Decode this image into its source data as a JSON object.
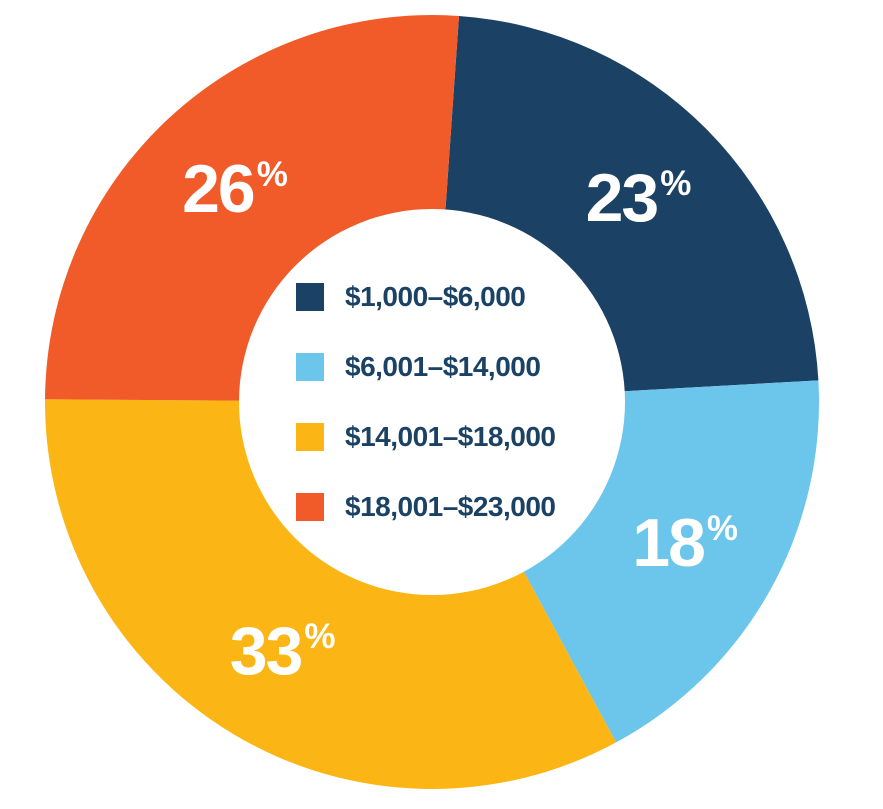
{
  "chart_data": {
    "type": "pie",
    "subtype": "donut",
    "slices": [
      {
        "label": "$1,000–$6,000",
        "value": 23,
        "percent_label": "23",
        "color": "#1B4265"
      },
      {
        "label": "$6,001–$14,000",
        "value": 18,
        "percent_label": "18",
        "color": "#6CC5EA"
      },
      {
        "label": "$14,001–$18,000",
        "value": 33,
        "percent_label": "33",
        "color": "#FBB615"
      },
      {
        "label": "$18,001–$23,000",
        "value": 26,
        "percent_label": "26",
        "color": "#F15A29"
      }
    ],
    "percent_suffix": "%",
    "rotation_deg": 4,
    "legend_position": "center",
    "slice_label_color": "#FFFFFF",
    "legend_text_color": "#1B4265",
    "background_color": "#FFFFFF"
  }
}
